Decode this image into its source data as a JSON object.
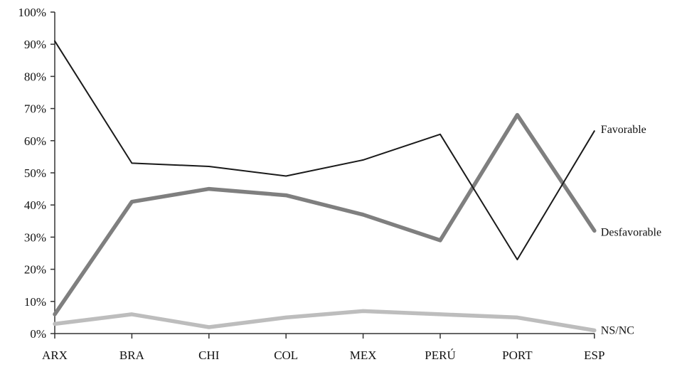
{
  "chart_data": {
    "type": "line",
    "title": "",
    "xlabel": "",
    "ylabel": "",
    "categories": [
      "ARX",
      "BRA",
      "CHI",
      "COL",
      "MEX",
      "PERÚ",
      "PORT",
      "ESP"
    ],
    "ylim": [
      0,
      100
    ],
    "yticks": [
      "0%",
      "10%",
      "20%",
      "30%",
      "40%",
      "50%",
      "60%",
      "70%",
      "80%",
      "90%",
      "100%"
    ],
    "grid": false,
    "series": [
      {
        "name": "Favorable",
        "color": "#1a1a1a",
        "values": [
          91,
          53,
          52,
          49,
          54,
          62,
          23,
          63
        ]
      },
      {
        "name": "Desfavorable",
        "color": "#7f7f7f",
        "values": [
          6,
          41,
          45,
          43,
          37,
          29,
          68,
          32
        ]
      },
      {
        "name": "NS/NC",
        "color": "#bdbdbd",
        "values": [
          3,
          6,
          2,
          5,
          7,
          6,
          5,
          1
        ]
      }
    ]
  }
}
